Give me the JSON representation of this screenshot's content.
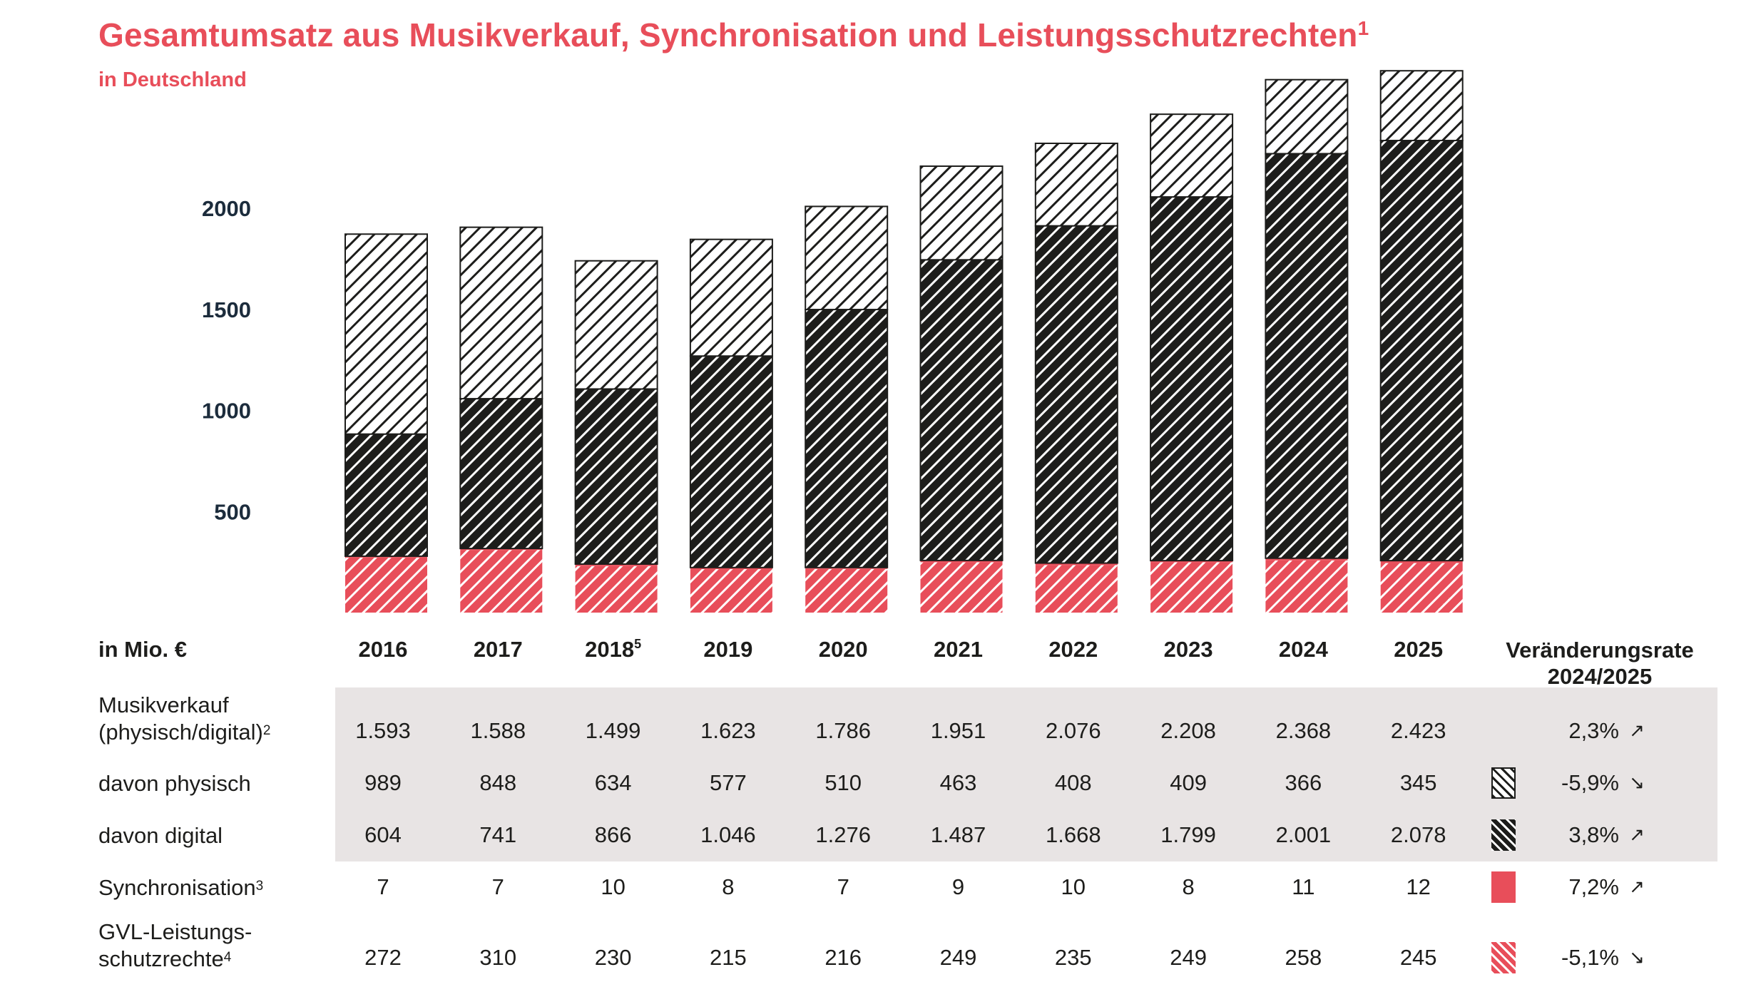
{
  "title": "Gesamtumsatz aus Musikverkauf, Synchronisation und Leistungsschutzrechten",
  "title_sup": "1",
  "subtitle": "in Deutschland",
  "colors": {
    "red": "#e84e5a",
    "dark": "#1d1d1b",
    "shade": "#e8e4e4",
    "axis_text": "#1c2c3c"
  },
  "table": {
    "unit_label": "in Mio. €",
    "rate_header_line1": "Veränderungsrate",
    "rate_header_line2": "2024/2025",
    "years": [
      {
        "label": "2016",
        "sup": ""
      },
      {
        "label": "2017",
        "sup": ""
      },
      {
        "label": "2018",
        "sup": "5"
      },
      {
        "label": "2019",
        "sup": ""
      },
      {
        "label": "2020",
        "sup": ""
      },
      {
        "label": "2021",
        "sup": ""
      },
      {
        "label": "2022",
        "sup": ""
      },
      {
        "label": "2023",
        "sup": ""
      },
      {
        "label": "2024",
        "sup": ""
      },
      {
        "label": "2025",
        "sup": ""
      }
    ],
    "rows": [
      {
        "id": "musikverkauf",
        "label_line1": "Musikverkauf",
        "label_line2": "(physisch/digital)",
        "label_sup": "2",
        "values": [
          "1.593",
          "1.588",
          "1.499",
          "1.623",
          "1.786",
          "1.951",
          "2.076",
          "2.208",
          "2.368",
          "2.423"
        ],
        "rate": "2,3%",
        "arrow": "↗",
        "swatch": "none"
      },
      {
        "id": "physisch",
        "label_line1": "davon physisch",
        "label_line2": "",
        "label_sup": "",
        "values": [
          "989",
          "848",
          "634",
          "577",
          "510",
          "463",
          "408",
          "409",
          "366",
          "345"
        ],
        "rate": "-5,9%",
        "arrow": "↘",
        "swatch": "hatch-light"
      },
      {
        "id": "digital",
        "label_line1": "davon digital",
        "label_line2": "",
        "label_sup": "",
        "values": [
          "604",
          "741",
          "866",
          "1.046",
          "1.276",
          "1.487",
          "1.668",
          "1.799",
          "2.001",
          "2.078"
        ],
        "rate": "3,8%",
        "arrow": "↗",
        "swatch": "hatch-dark"
      },
      {
        "id": "synchronisation",
        "label_line1": "Synchronisation",
        "label_line2": "",
        "label_sup": "3",
        "values": [
          "7",
          "7",
          "10",
          "8",
          "7",
          "9",
          "10",
          "8",
          "11",
          "12"
        ],
        "rate": "7,2%",
        "arrow": "↗",
        "swatch": "solid-red"
      },
      {
        "id": "gvl",
        "label_line1": "GVL-Leistungs-",
        "label_line2": "schutzrechte",
        "label_sup": "4",
        "values": [
          "272",
          "310",
          "230",
          "215",
          "216",
          "249",
          "235",
          "249",
          "258",
          "245"
        ],
        "rate": "-5,1%",
        "arrow": "↘",
        "swatch": "hatch-red"
      }
    ]
  },
  "chart_data": {
    "type": "bar",
    "stacked": true,
    "title": "Gesamtumsatz aus Musikverkauf, Synchronisation und Leistungsschutzrechten",
    "subtitle": "in Deutschland",
    "ylabel": "in Mio. €",
    "categories": [
      "2016",
      "2017",
      "2018",
      "2019",
      "2020",
      "2021",
      "2022",
      "2023",
      "2024",
      "2025"
    ],
    "yticks": [
      500,
      1000,
      1500,
      2000
    ],
    "ylim": [
      0,
      2500
    ],
    "grid": false,
    "series": [
      {
        "name": "GVL-Leistungsschutzrechte",
        "values": [
          272,
          310,
          230,
          215,
          216,
          249,
          235,
          249,
          258,
          245
        ]
      },
      {
        "name": "Synchronisation",
        "values": [
          7,
          7,
          10,
          8,
          7,
          9,
          10,
          8,
          11,
          12
        ]
      },
      {
        "name": "davon digital",
        "values": [
          604,
          741,
          866,
          1046,
          1276,
          1487,
          1668,
          1799,
          2001,
          2078
        ]
      },
      {
        "name": "davon physisch",
        "values": [
          989,
          848,
          634,
          577,
          510,
          463,
          408,
          409,
          366,
          345
        ]
      }
    ]
  }
}
